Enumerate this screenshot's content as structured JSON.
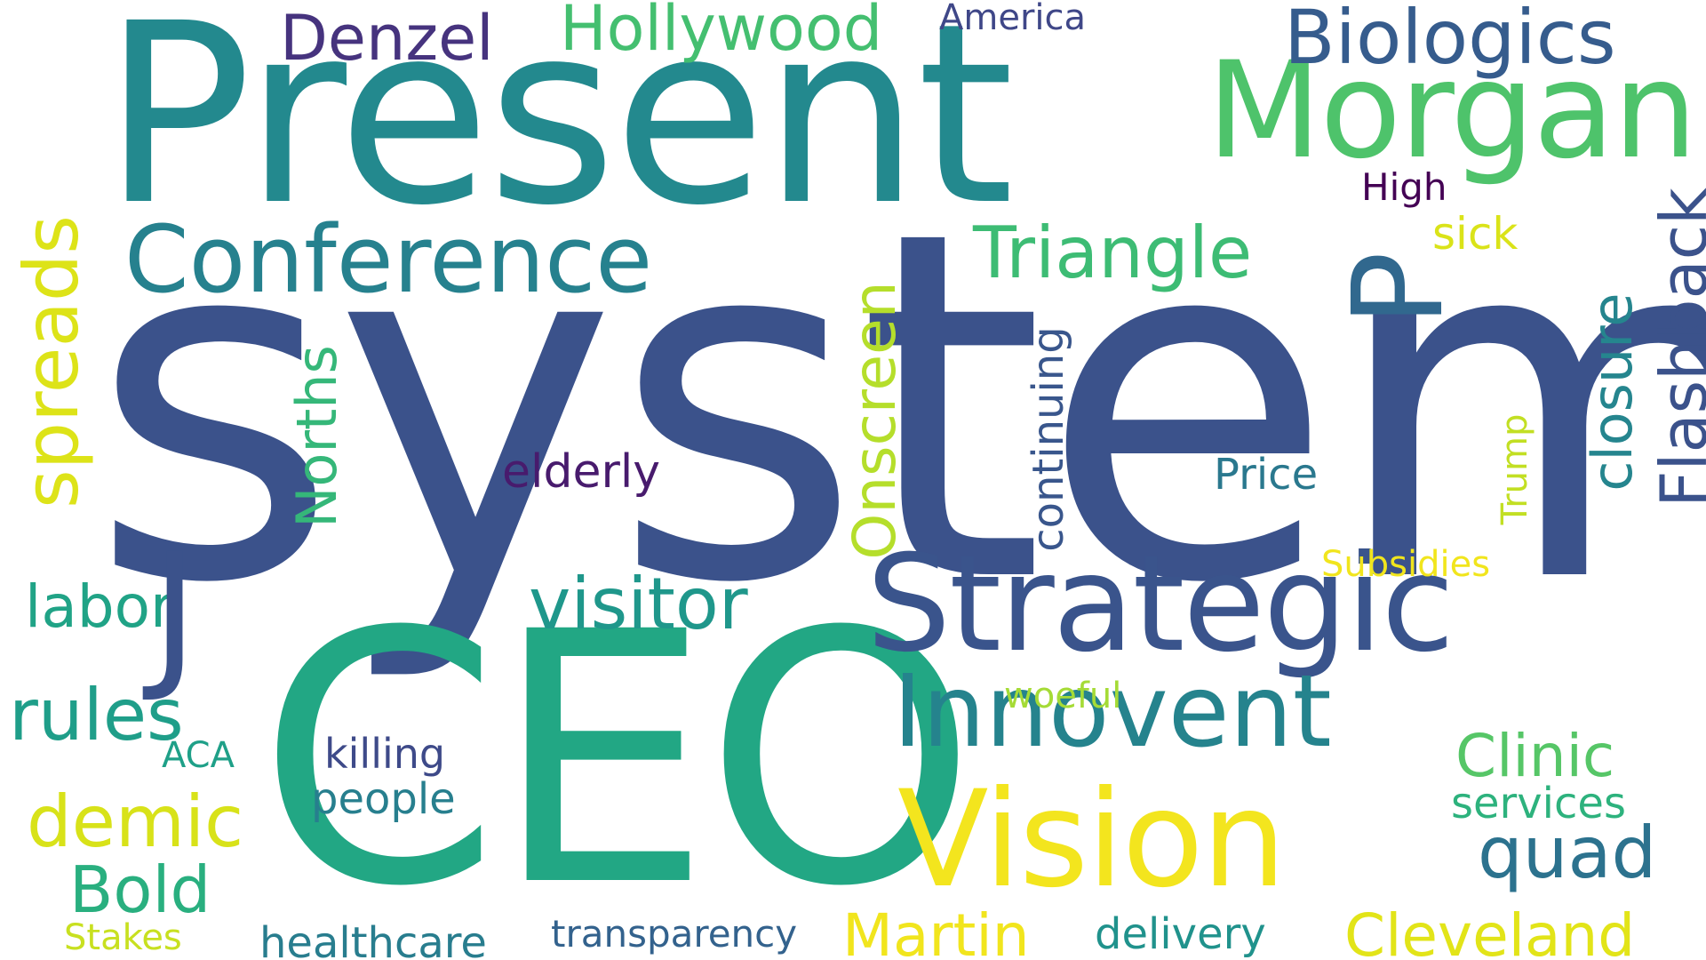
{
  "words": {
    "system": "system",
    "ceo": "CEO",
    "present": "Present",
    "morgan": "Morgan",
    "strategic": "Strategic",
    "vision": "Vision",
    "innovent": "Innovent",
    "conference": "Conference",
    "biologics": "Biologics",
    "triangle": "Triangle",
    "visitor": "visitor",
    "rules": "rules",
    "demic": "demic",
    "bold": "Bold",
    "quad": "quad",
    "martin": "Martin",
    "cleveland": "Cleveland",
    "clinic": "Clinic",
    "labor": "labor",
    "denzel": "Denzel",
    "hollywood": "Hollywood",
    "healthcare": "healthcare",
    "transparency": "transparency",
    "delivery": "delivery",
    "services": "services",
    "people": "people",
    "killing": "killing",
    "elderly": "elderly",
    "price": "Price",
    "subsidies": "Subsidies",
    "woeful": "woeful",
    "america": "America",
    "high": "High",
    "sick": "sick",
    "aca": "ACA",
    "stakes": "Stakes",
    "spreads": "spreads",
    "norths": "Norths",
    "onscreen": "Onscreen",
    "continuing": "continuing",
    "closure": "closure",
    "flashback": "Flashback",
    "trump": "Trump",
    "p": "P",
    "j": "J"
  },
  "colors": {
    "system": "#3b528b",
    "ceo": "#22a784",
    "present": "#23898e",
    "morgan": "#4ec36b",
    "strategic": "#3a548c",
    "vision": "#f3e51e",
    "innovent": "#25838d",
    "conference": "#26818e",
    "biologics": "#365c8d",
    "triangle": "#3dbc74",
    "visitor": "#1f978b",
    "rules": "#1f9e89",
    "demic": "#d8e219",
    "bold": "#29af7f",
    "quad": "#2c728e",
    "martin": "#f1e51d",
    "cleveland": "#e2e418",
    "clinic": "#56c667",
    "labor": "#20a386",
    "denzel": "#46337e",
    "hollywood": "#44bf70",
    "healthcare": "#287d8e",
    "transparency": "#33628d",
    "delivery": "#20928c",
    "services": "#2db27d",
    "people": "#277f8e",
    "killing": "#3e4a89",
    "elderly": "#481b6d",
    "price": "#2a788e",
    "subsidies": "#f1e51d",
    "woeful": "#a5db36",
    "america": "#3f4788",
    "high": "#440154",
    "sick": "#dae319",
    "aca": "#1fa088",
    "stakes": "#c8e020",
    "spreads": "#dde318",
    "norths": "#35b779",
    "onscreen": "#b5de2b",
    "continuing": "#39568c",
    "closure": "#25858e",
    "flashback": "#3b528b",
    "trump": "#c2df23",
    "p": "#31688e",
    "j": "#3b528b"
  }
}
